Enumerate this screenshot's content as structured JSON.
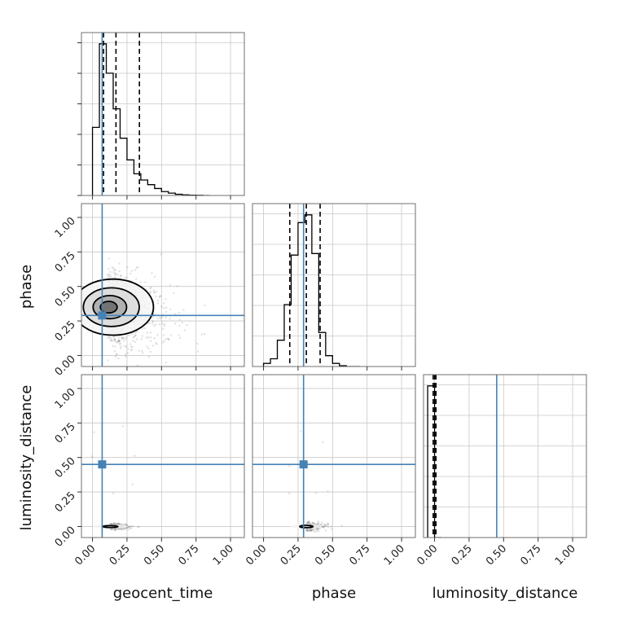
{
  "chart_data": {
    "type": "corner",
    "parameters": [
      "geocent_time",
      "phase",
      "luminosity_distance"
    ],
    "ticks": [
      "0.00",
      "0.25",
      "0.50",
      "0.75",
      "1.00"
    ],
    "tick_values": [
      0,
      0.25,
      0.5,
      0.75,
      1.0
    ],
    "axis_range": [
      -0.08,
      1.1
    ],
    "truth_color": "#4682b4",
    "truths": {
      "geocent_time": 0.07,
      "phase": 0.29,
      "luminosity_distance": 0.45
    },
    "grid": true,
    "histograms": {
      "geocent_time": {
        "edges": [
          0.0,
          0.05,
          0.1,
          0.15,
          0.2,
          0.25,
          0.3,
          0.35,
          0.4,
          0.45,
          0.5,
          0.55,
          0.6,
          0.65,
          0.7,
          0.75,
          0.8,
          0.85
        ],
        "counts": [
          0.44,
          0.98,
          0.79,
          0.56,
          0.37,
          0.23,
          0.14,
          0.1,
          0.07,
          0.045,
          0.025,
          0.015,
          0.008,
          0.004,
          0.002,
          0.001,
          0.0
        ],
        "quantiles": [
          0.08,
          0.17,
          0.34
        ]
      },
      "phase": {
        "edges": [
          0.0,
          0.05,
          0.1,
          0.15,
          0.2,
          0.25,
          0.3,
          0.35,
          0.4,
          0.45,
          0.5,
          0.55,
          0.6,
          0.65,
          0.7
        ],
        "counts": [
          0.02,
          0.05,
          0.17,
          0.4,
          0.72,
          0.93,
          0.98,
          0.73,
          0.22,
          0.07,
          0.02,
          0.005,
          0.0,
          0.0
        ],
        "quantiles": [
          0.19,
          0.31,
          0.41
        ]
      },
      "luminosity_distance": {
        "edges": [
          -0.05,
          0.0,
          0.05
        ],
        "counts": [
          0.98,
          0.0
        ],
        "quantiles": [
          -0.01,
          0.0,
          0.01
        ]
      }
    },
    "contours_2d": [
      {
        "x": "geocent_time",
        "y": "phase",
        "center": [
          0.11,
          0.35
        ],
        "spread": [
          0.15,
          0.14
        ],
        "levels": [
          0.3,
          0.6,
          1.0,
          1.45
        ],
        "skew": 0.35
      },
      {
        "x": "geocent_time",
        "y": "luminosity_distance",
        "center": [
          0.13,
          0.0
        ],
        "spread": [
          0.09,
          0.012
        ],
        "levels": [
          0.6,
          1.4
        ],
        "skew": 0.0
      },
      {
        "x": "phase",
        "y": "luminosity_distance",
        "center": [
          0.31,
          0.0
        ],
        "spread": [
          0.08,
          0.014
        ],
        "levels": [
          0.6,
          1.4
        ],
        "skew": 0.0
      }
    ]
  }
}
